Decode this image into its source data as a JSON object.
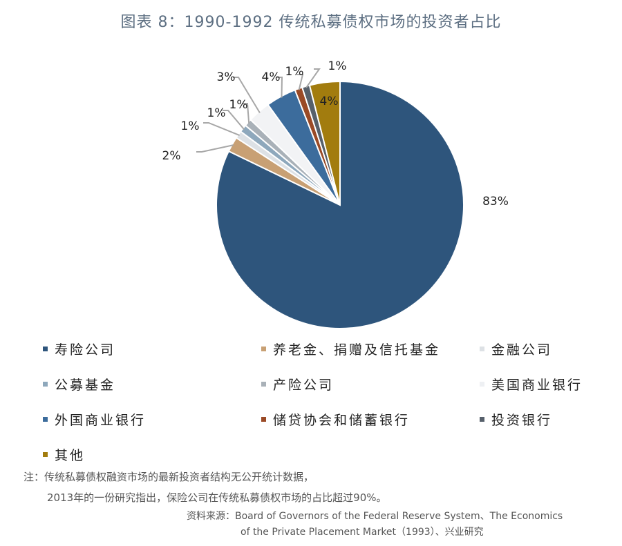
{
  "title": "图表 8：1990-1992 传统私募债权市场的投资者占比",
  "chart_data": {
    "type": "pie",
    "start_angle": "12 o'clock, clockwise",
    "slices": [
      {
        "name": "寿险公司",
        "value": 83,
        "label": "83%",
        "color": "#2e557c"
      },
      {
        "name": "养老金、捐赠及信托基金",
        "value": 2,
        "label": "2%",
        "color": "#c8a074"
      },
      {
        "name": "金融公司",
        "value": 1,
        "label": "1%",
        "color": "#dde1e5"
      },
      {
        "name": "公募基金",
        "value": 1,
        "label": "1%",
        "color": "#8ea8bc"
      },
      {
        "name": "产险公司",
        "value": 1,
        "label": "1%",
        "color": "#a9b1b8"
      },
      {
        "name": "美国商业银行",
        "value": 3,
        "label": "3%",
        "color": "#f2f3f5"
      },
      {
        "name": "外国商业银行",
        "value": 4,
        "label": "4%",
        "color": "#3c6c9c"
      },
      {
        "name": "储贷协会和储蓄银行",
        "value": 1,
        "label": "1%",
        "color": "#9a4a26"
      },
      {
        "name": "投资银行",
        "value": 1,
        "label": "1%",
        "color": "#56606b"
      },
      {
        "name": "其他",
        "value": 4,
        "label": "4%",
        "color": "#a27c0e"
      }
    ]
  },
  "legend": [
    {
      "label": "寿险公司",
      "color": "#2e557c"
    },
    {
      "label": "养老金、捐赠及信托基金",
      "color": "#c8a074"
    },
    {
      "label": "金融公司",
      "color": "#dde1e5"
    },
    {
      "label": "公募基金",
      "color": "#8ea8bc"
    },
    {
      "label": "产险公司",
      "color": "#a9b1b8"
    },
    {
      "label": "美国商业银行",
      "color": "#eef0f3"
    },
    {
      "label": "外国商业银行",
      "color": "#3c6c9c"
    },
    {
      "label": "储贷协会和储蓄银行",
      "color": "#9a4a26"
    },
    {
      "label": "投资银行",
      "color": "#56606b"
    },
    {
      "label": "其他",
      "color": "#a27c0e"
    }
  ],
  "note": {
    "line1": "注：传统私募债权融资市场的最新投资者结构无公开统计数据，",
    "line2": "2013年的一份研究指出，保险公司在传统私募债权市场的占比超过90%。"
  },
  "source": {
    "line1": "资料来源：Board of Governors of the Federal Reserve System、The Economics",
    "line2": "of the Private Placement Market（1993）、兴业研究"
  }
}
